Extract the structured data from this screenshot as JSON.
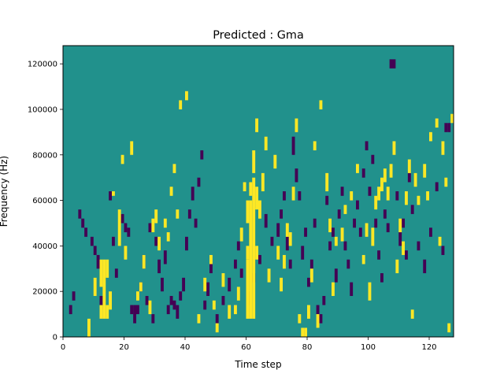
{
  "chart_data": {
    "type": "heatmap",
    "title": "Predicted : Gma",
    "xlabel": "Time step",
    "ylabel": "Frequency (Hz)",
    "xlim": [
      0,
      128
    ],
    "ylim": [
      0,
      128000
    ],
    "x_ticks": [
      0,
      20,
      40,
      60,
      80,
      100,
      120
    ],
    "x_tick_labels": [
      "0",
      "20",
      "40",
      "60",
      "80",
      "100",
      "120"
    ],
    "y_ticks": [
      0,
      20000,
      40000,
      60000,
      80000,
      100000,
      120000
    ],
    "y_tick_labels": [
      "0",
      "20000",
      "40000",
      "60000",
      "80000",
      "100000",
      "120000"
    ],
    "grid": false,
    "legend": "none",
    "n_time_steps": 128,
    "n_freq_bins": 128,
    "freq_bin_hz": 1000,
    "cell_values": {
      "low": -1,
      "background": 0,
      "high": 1
    },
    "colors": {
      "low": "#440154",
      "background": "#21918c",
      "high": "#fde725"
    },
    "high_cells": [
      [
        8,
        0,
        8
      ],
      [
        10,
        18,
        26
      ],
      [
        12,
        8,
        14
      ],
      [
        12,
        22,
        34
      ],
      [
        13,
        8,
        34
      ],
      [
        14,
        8,
        14
      ],
      [
        14,
        26,
        34
      ],
      [
        15,
        12,
        20
      ],
      [
        16,
        62,
        64
      ],
      [
        18,
        40,
        56
      ],
      [
        19,
        76,
        80
      ],
      [
        20,
        34,
        40
      ],
      [
        22,
        80,
        86
      ],
      [
        24,
        16,
        20
      ],
      [
        25,
        20,
        24
      ],
      [
        26,
        30,
        36
      ],
      [
        28,
        10,
        16
      ],
      [
        29,
        46,
        52
      ],
      [
        30,
        50,
        56
      ],
      [
        31,
        38,
        44
      ],
      [
        33,
        48,
        52
      ],
      [
        34,
        42,
        46
      ],
      [
        35,
        62,
        66
      ],
      [
        36,
        72,
        76
      ],
      [
        37,
        52,
        56
      ],
      [
        38,
        100,
        104
      ],
      [
        40,
        104,
        108
      ],
      [
        44,
        6,
        10
      ],
      [
        46,
        20,
        26
      ],
      [
        48,
        32,
        36
      ],
      [
        49,
        12,
        16
      ],
      [
        50,
        2,
        6
      ],
      [
        52,
        22,
        28
      ],
      [
        54,
        8,
        14
      ],
      [
        56,
        10,
        14
      ],
      [
        57,
        16,
        22
      ],
      [
        58,
        42,
        48
      ],
      [
        59,
        64,
        68
      ],
      [
        60,
        34,
        40
      ],
      [
        60,
        8,
        34
      ],
      [
        61,
        8,
        60
      ],
      [
        62,
        8,
        70
      ],
      [
        63,
        34,
        40
      ],
      [
        63,
        56,
        66
      ],
      [
        64,
        52,
        60
      ],
      [
        60,
        50,
        60
      ],
      [
        61,
        62,
        68
      ],
      [
        62,
        72,
        82
      ],
      [
        63,
        90,
        96
      ],
      [
        65,
        64,
        72
      ],
      [
        66,
        82,
        88
      ],
      [
        67,
        24,
        30
      ],
      [
        69,
        74,
        80
      ],
      [
        70,
        34,
        40
      ],
      [
        71,
        20,
        26
      ],
      [
        72,
        30,
        36
      ],
      [
        73,
        44,
        50
      ],
      [
        74,
        40,
        46
      ],
      [
        75,
        60,
        66
      ],
      [
        76,
        90,
        96
      ],
      [
        77,
        6,
        10
      ],
      [
        78,
        0,
        4
      ],
      [
        79,
        0,
        4
      ],
      [
        80,
        8,
        14
      ],
      [
        81,
        24,
        30
      ],
      [
        82,
        82,
        86
      ],
      [
        83,
        4,
        10
      ],
      [
        84,
        100,
        104
      ],
      [
        86,
        64,
        72
      ],
      [
        87,
        46,
        52
      ],
      [
        88,
        18,
        24
      ],
      [
        89,
        40,
        44
      ],
      [
        91,
        42,
        48
      ],
      [
        92,
        54,
        58
      ],
      [
        94,
        60,
        64
      ],
      [
        96,
        72,
        76
      ],
      [
        98,
        32,
        36
      ],
      [
        99,
        44,
        50
      ],
      [
        100,
        16,
        24
      ],
      [
        101,
        40,
        48
      ],
      [
        102,
        56,
        62
      ],
      [
        103,
        60,
        66
      ],
      [
        104,
        64,
        70
      ],
      [
        105,
        68,
        74
      ],
      [
        106,
        60,
        66
      ],
      [
        107,
        70,
        76
      ],
      [
        108,
        80,
        86
      ],
      [
        109,
        28,
        34
      ],
      [
        110,
        46,
        52
      ],
      [
        111,
        36,
        42
      ],
      [
        112,
        58,
        64
      ],
      [
        113,
        72,
        78
      ],
      [
        114,
        8,
        12
      ],
      [
        115,
        66,
        72
      ],
      [
        116,
        58,
        62
      ],
      [
        118,
        70,
        76
      ],
      [
        119,
        60,
        64
      ],
      [
        120,
        86,
        90
      ],
      [
        122,
        92,
        96
      ],
      [
        123,
        40,
        44
      ],
      [
        124,
        80,
        86
      ],
      [
        125,
        66,
        70
      ],
      [
        126,
        2,
        6
      ],
      [
        127,
        94,
        98
      ]
    ],
    "low_cells": [
      [
        2,
        10,
        14
      ],
      [
        3,
        16,
        20
      ],
      [
        5,
        52,
        56
      ],
      [
        6,
        48,
        52
      ],
      [
        7,
        44,
        48
      ],
      [
        9,
        40,
        44
      ],
      [
        10,
        36,
        40
      ],
      [
        11,
        30,
        36
      ],
      [
        12,
        12,
        18
      ],
      [
        15,
        60,
        64
      ],
      [
        16,
        40,
        44
      ],
      [
        17,
        26,
        30
      ],
      [
        19,
        50,
        54
      ],
      [
        20,
        46,
        50
      ],
      [
        21,
        44,
        48
      ],
      [
        22,
        10,
        14
      ],
      [
        23,
        6,
        14
      ],
      [
        24,
        10,
        14
      ],
      [
        25,
        20,
        24
      ],
      [
        26,
        30,
        36
      ],
      [
        27,
        14,
        18
      ],
      [
        28,
        46,
        50
      ],
      [
        29,
        6,
        10
      ],
      [
        30,
        40,
        44
      ],
      [
        31,
        28,
        34
      ],
      [
        32,
        20,
        26
      ],
      [
        33,
        32,
        38
      ],
      [
        34,
        10,
        14
      ],
      [
        35,
        14,
        18
      ],
      [
        36,
        12,
        16
      ],
      [
        37,
        8,
        14
      ],
      [
        38,
        16,
        20
      ],
      [
        39,
        20,
        26
      ],
      [
        40,
        38,
        44
      ],
      [
        41,
        52,
        56
      ],
      [
        42,
        60,
        66
      ],
      [
        43,
        48,
        52
      ],
      [
        44,
        66,
        70
      ],
      [
        45,
        78,
        82
      ],
      [
        46,
        12,
        16
      ],
      [
        47,
        18,
        24
      ],
      [
        48,
        28,
        32
      ],
      [
        50,
        6,
        10
      ],
      [
        52,
        14,
        18
      ],
      [
        54,
        20,
        26
      ],
      [
        56,
        30,
        34
      ],
      [
        57,
        38,
        42
      ],
      [
        58,
        26,
        30
      ],
      [
        60,
        14,
        20
      ],
      [
        62,
        24,
        28
      ],
      [
        64,
        32,
        36
      ],
      [
        66,
        48,
        54
      ],
      [
        68,
        40,
        44
      ],
      [
        70,
        44,
        50
      ],
      [
        71,
        52,
        56
      ],
      [
        72,
        60,
        64
      ],
      [
        73,
        38,
        44
      ],
      [
        74,
        30,
        34
      ],
      [
        75,
        80,
        88
      ],
      [
        76,
        68,
        74
      ],
      [
        77,
        60,
        64
      ],
      [
        78,
        34,
        40
      ],
      [
        79,
        44,
        48
      ],
      [
        80,
        22,
        26
      ],
      [
        81,
        30,
        34
      ],
      [
        82,
        48,
        52
      ],
      [
        83,
        10,
        14
      ],
      [
        84,
        6,
        10
      ],
      [
        85,
        14,
        18
      ],
      [
        86,
        58,
        62
      ],
      [
        87,
        38,
        42
      ],
      [
        88,
        44,
        48
      ],
      [
        89,
        24,
        30
      ],
      [
        90,
        52,
        56
      ],
      [
        91,
        62,
        66
      ],
      [
        92,
        38,
        42
      ],
      [
        93,
        30,
        34
      ],
      [
        94,
        18,
        24
      ],
      [
        95,
        48,
        52
      ],
      [
        96,
        56,
        60
      ],
      [
        97,
        44,
        48
      ],
      [
        98,
        70,
        74
      ],
      [
        99,
        82,
        86
      ],
      [
        100,
        62,
        66
      ],
      [
        101,
        76,
        80
      ],
      [
        102,
        48,
        52
      ],
      [
        103,
        34,
        38
      ],
      [
        104,
        24,
        28
      ],
      [
        105,
        52,
        56
      ],
      [
        106,
        46,
        50
      ],
      [
        107,
        118,
        122
      ],
      [
        108,
        118,
        122
      ],
      [
        109,
        60,
        64
      ],
      [
        110,
        40,
        46
      ],
      [
        111,
        48,
        52
      ],
      [
        112,
        34,
        38
      ],
      [
        113,
        68,
        72
      ],
      [
        114,
        54,
        58
      ],
      [
        116,
        38,
        42
      ],
      [
        118,
        28,
        34
      ],
      [
        120,
        44,
        48
      ],
      [
        122,
        64,
        68
      ],
      [
        124,
        36,
        40
      ],
      [
        125,
        90,
        94
      ],
      [
        126,
        90,
        94
      ]
    ]
  }
}
